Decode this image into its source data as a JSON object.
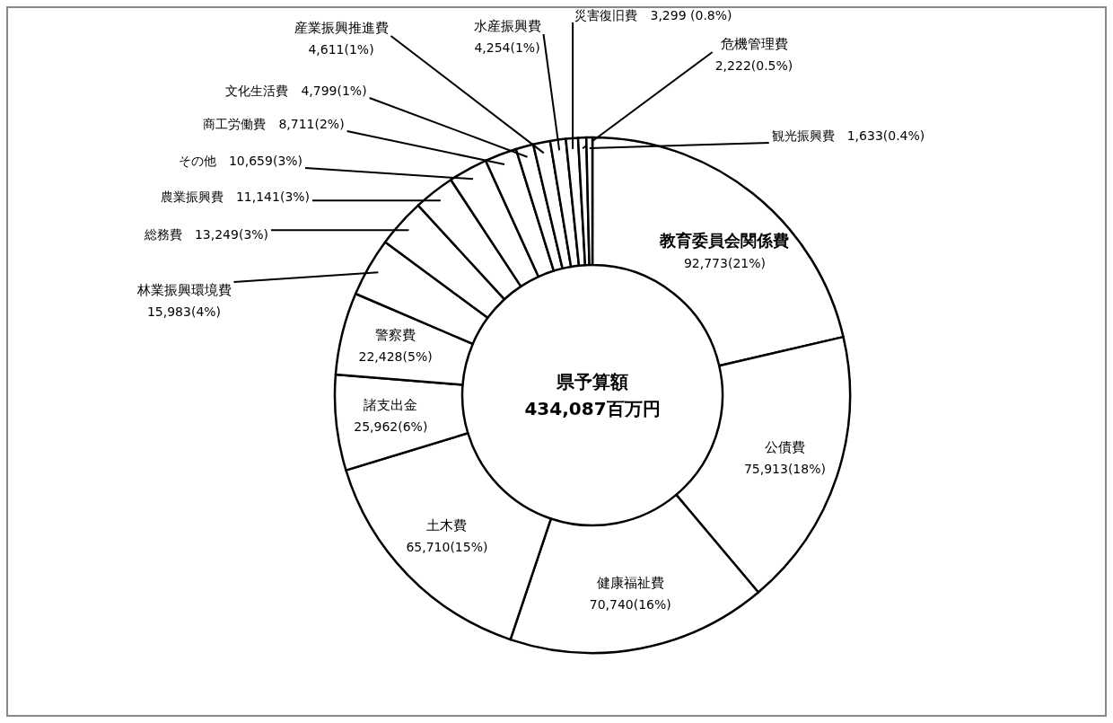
{
  "chart_data": {
    "type": "donut",
    "categories": [
      "教育委員会関係費",
      "公債費",
      "健康福祉費",
      "土木費",
      "諸支出金",
      "警察費",
      "林業振興環境費",
      "総務費",
      "農業振興費",
      "その他",
      "商工労働費",
      "文化生活費",
      "産業振興推進費",
      "水産振興費",
      "災害復旧費",
      "危機管理費",
      "観光振興費"
    ],
    "values": [
      92773,
      75913,
      70740,
      65710,
      25962,
      22428,
      15983,
      13249,
      11141,
      10659,
      8711,
      4799,
      4611,
      4254,
      3299,
      2222,
      1633
    ],
    "value_labels": [
      "92,773(21%)",
      "75,913(18%)",
      "70,740(16%)",
      "65,710(15%)",
      "25,962(6%)",
      "22,428(5%)",
      "15,983(4%)",
      "13,249(3%)",
      "11,141(3%)",
      "10,659(3%)",
      "8,711(2%)",
      "4,799(1%)",
      "4,611(1%)",
      "4,254(1%)",
      "3,299 (0.8%)",
      "2,222(0.5%)",
      "1,633(0.4%)"
    ],
    "colors": [
      "#ffffff",
      "#ffffff",
      "#ffffff",
      "#ffffff",
      "#ffffff",
      "#ffffff",
      "#ffffff",
      "#ffffff",
      "#ffffff",
      "#ffffff",
      "#ffffff",
      "#ffffff",
      "#ffffff",
      "#ffffff",
      "#ffffff",
      "#ffffff",
      "#ffffff"
    ],
    "annotations": [
      "県予算額",
      "434,087百万円"
    ]
  }
}
